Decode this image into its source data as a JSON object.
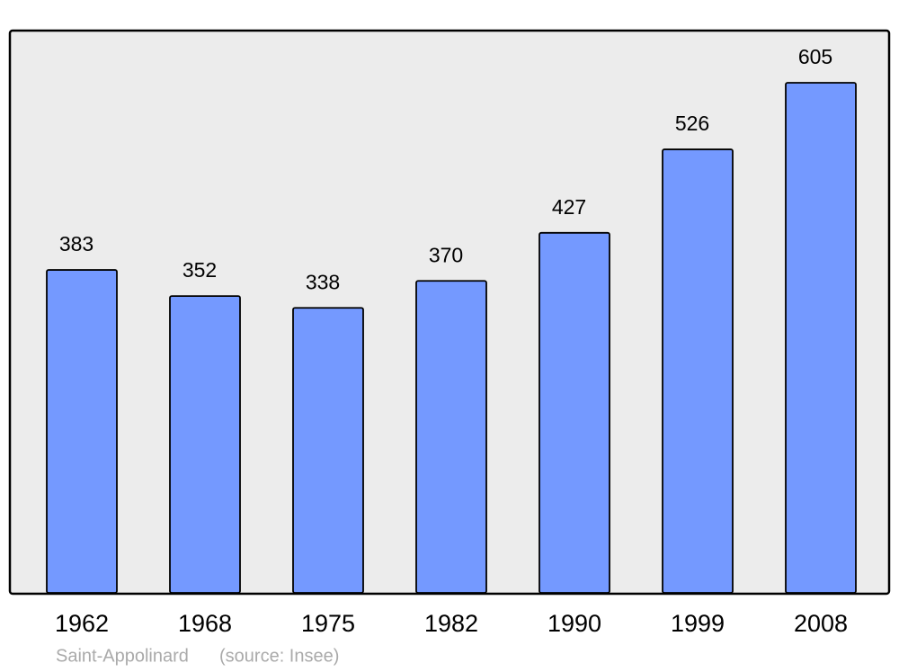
{
  "chart_data": {
    "type": "bar",
    "title": "Saint-Appolinard",
    "source": "(source: Insee)",
    "categories": [
      "1962",
      "1968",
      "1975",
      "1982",
      "1990",
      "1999",
      "2008"
    ],
    "values": [
      383,
      352,
      338,
      370,
      427,
      526,
      605
    ],
    "color": "#7499ff"
  }
}
